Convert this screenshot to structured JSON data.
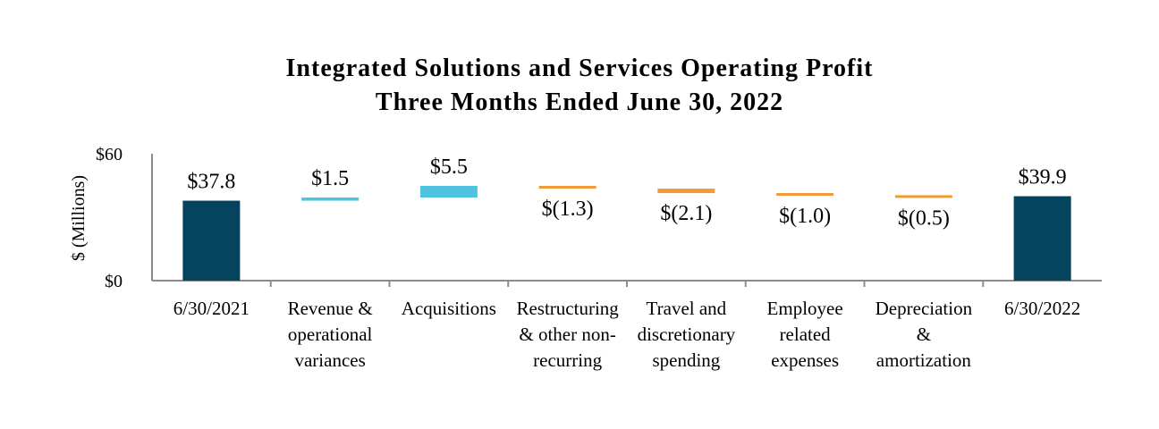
{
  "chart_data": {
    "type": "bar",
    "subtype": "waterfall",
    "title": "Integrated Solutions and Services Operating Profit",
    "subtitle": "Three Months Ended June 30, 2022",
    "xlabel": "",
    "ylabel": "$ (Millions)",
    "ylim": [
      0,
      60
    ],
    "yticks": [
      "$0",
      "$60"
    ],
    "categories": [
      "6/30/2021",
      "Revenue & operational variances",
      "Acquisitions",
      "Restructuring & other non-recurring",
      "Travel and discretionary spending",
      "Employee related expenses",
      "Depreciation & amortization",
      "6/30/2022"
    ],
    "category_lines": [
      [
        "6/30/2021"
      ],
      [
        "Revenue &",
        "operational",
        "variances"
      ],
      [
        "Acquisitions"
      ],
      [
        "Restructuring",
        "& other non-",
        "recurring"
      ],
      [
        "Travel and",
        "discretionary",
        "spending"
      ],
      [
        "Employee",
        "related",
        "expenses"
      ],
      [
        "Depreciation",
        "&",
        "amortization"
      ],
      [
        "6/30/2022"
      ]
    ],
    "values": [
      37.8,
      1.5,
      5.5,
      -1.3,
      -2.1,
      -1.0,
      -0.5,
      39.9
    ],
    "bar_kinds": [
      "total",
      "increase",
      "increase",
      "decrease",
      "decrease",
      "decrease",
      "decrease",
      "total"
    ],
    "data_labels": [
      "$37.8",
      "$1.5",
      "$5.5",
      "$(1.3)",
      "$(2.1)",
      "$(1.0)",
      "$(0.5)",
      "$39.9"
    ],
    "colors": {
      "total": "#05445E",
      "increase": "#4DC3E1",
      "decrease": "#F29A38",
      "axis": "#8c8c8c"
    }
  }
}
